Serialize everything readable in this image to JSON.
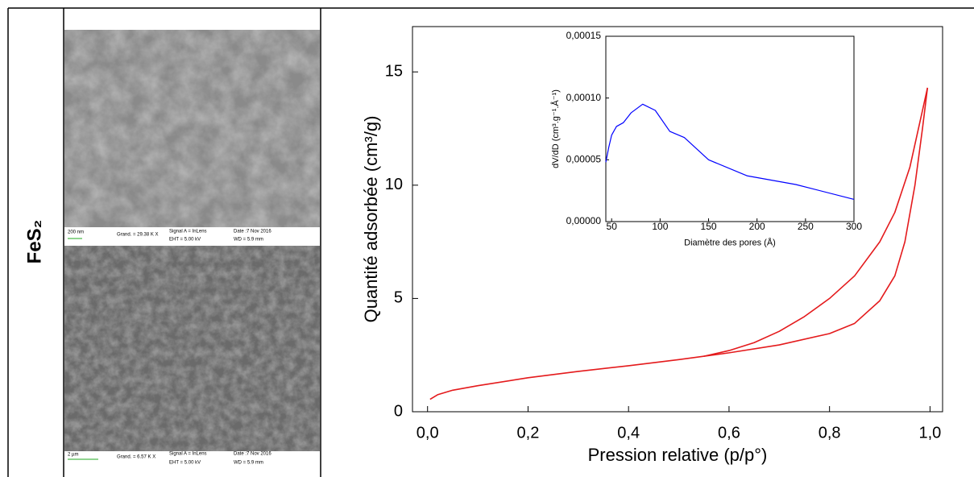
{
  "row_label": "FeS₂",
  "sem_images": [
    {
      "scale": "200 nm",
      "magnification": "Grand. = 29.38 K X",
      "signal": "Signal A = InLens",
      "date": "Date :7 Nov 2016",
      "eht": "EHT = 5.00 kV",
      "wd": "WD = 5.9 mm"
    },
    {
      "scale": "2 µm",
      "magnification": "Grand. = 6.57 K X",
      "signal": "Signal A = InLens",
      "date": "Date :7 Nov 2016",
      "eht": "EHT = 5.00 kV",
      "wd": "WD = 5.9 mm"
    }
  ],
  "chart_data": [
    {
      "type": "line",
      "x_label": "Pression relative (p/p°)",
      "y_label": "Quantité adsorbée (cm³/g)",
      "xlim": [
        -0.03,
        1.025
      ],
      "ylim": [
        0,
        17
      ],
      "xticks": [
        {
          "value": 0,
          "label": "0,0"
        },
        {
          "value": 0.2,
          "label": "0,2"
        },
        {
          "value": 0.4,
          "label": "0,4"
        },
        {
          "value": 0.6,
          "label": "0,6"
        },
        {
          "value": 0.8,
          "label": "0,8"
        },
        {
          "value": 1.0,
          "label": "1,0"
        }
      ],
      "yticks": [
        0,
        5,
        10,
        15
      ],
      "series": [
        {
          "color": "#e41a1c",
          "x": [
            0.005,
            0.02,
            0.05,
            0.1,
            0.2,
            0.3,
            0.4,
            0.5,
            0.6,
            0.7,
            0.8,
            0.85,
            0.9,
            0.93,
            0.95,
            0.97,
            0.985,
            0.995
          ],
          "values": [
            0.55,
            0.75,
            0.95,
            1.15,
            1.5,
            1.78,
            2.03,
            2.3,
            2.6,
            2.95,
            3.45,
            3.9,
            4.9,
            6.0,
            7.5,
            10.0,
            12.5,
            14.3
          ]
        },
        {
          "color": "#e41a1c",
          "x": [
            0.55,
            0.6,
            0.65,
            0.7,
            0.75,
            0.8,
            0.85,
            0.9,
            0.93,
            0.96,
            0.98,
            0.995
          ],
          "values": [
            2.45,
            2.7,
            3.05,
            3.55,
            4.2,
            5.0,
            6.0,
            7.5,
            8.8,
            10.8,
            12.8,
            14.3
          ]
        }
      ]
    },
    {
      "type": "line",
      "x_label": "Diamètre des pores (Å)",
      "y_label": "dV/dD (cm³.g⁻¹.Å⁻¹)",
      "xlim": [
        44,
        300
      ],
      "ylim": [
        0,
        0.00015
      ],
      "xticks": [
        50,
        100,
        150,
        200,
        250,
        300
      ],
      "yticks": [
        {
          "value": 0,
          "label": "0,00000"
        },
        {
          "value": 5e-05,
          "label": "0,00005"
        },
        {
          "value": 0.0001,
          "label": "0,00010"
        },
        {
          "value": 0.00015,
          "label": "0,00015"
        }
      ],
      "series": [
        {
          "color": "#0000ff",
          "x": [
            44,
            47,
            50,
            55,
            62,
            70,
            82,
            95,
            110,
            125,
            150,
            190,
            240,
            300
          ],
          "values": [
            4.8e-05,
            6e-05,
            7e-05,
            7.7e-05,
            8e-05,
            8.8e-05,
            9.5e-05,
            9e-05,
            7.3e-05,
            6.8e-05,
            5e-05,
            3.7e-05,
            3e-05,
            1.8e-05
          ]
        }
      ]
    }
  ]
}
